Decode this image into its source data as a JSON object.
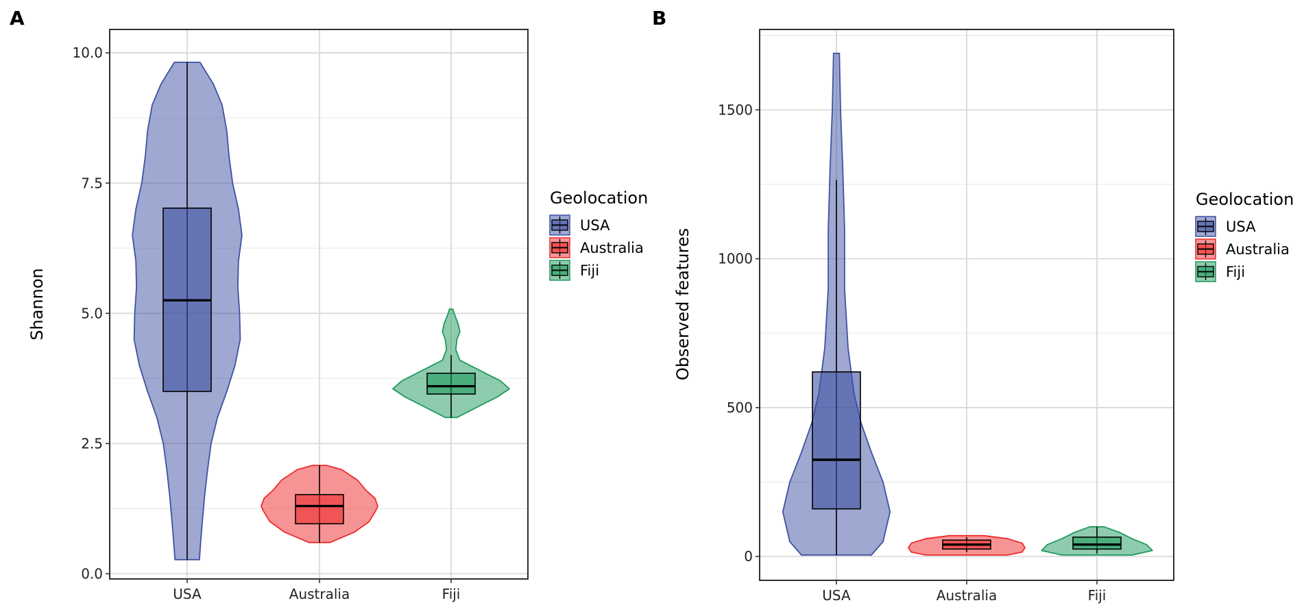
{
  "chart_data": [
    {
      "panel_label": "A",
      "type": "violin",
      "title": "",
      "xlabel": "",
      "ylabel": "Shannon",
      "ylim": [
        -0.1,
        10.45
      ],
      "yticks": [
        0.0,
        2.5,
        5.0,
        7.5,
        10.0
      ],
      "ytick_labels": [
        "0.0",
        "2.5",
        "5.0",
        "7.5",
        "10.0"
      ],
      "categories": [
        "USA",
        "Australia",
        "Fiji"
      ],
      "grid": true,
      "legend": {
        "title": "Geolocation",
        "position": "right",
        "entries": [
          "USA",
          "Australia",
          "Fiji"
        ]
      },
      "groups": [
        {
          "name": "USA",
          "color": "#3F51A2",
          "box": {
            "whisker_low": 0.27,
            "q1": 3.5,
            "median": 5.25,
            "q3": 7.02,
            "whisker_high": 9.82
          },
          "density": [
            [
              0.27,
              0.21
            ],
            [
              0.6,
              0.23
            ],
            [
              1.0,
              0.26
            ],
            [
              1.5,
              0.3
            ],
            [
              2.0,
              0.35
            ],
            [
              2.5,
              0.41
            ],
            [
              3.0,
              0.52
            ],
            [
              3.5,
              0.68
            ],
            [
              4.0,
              0.82
            ],
            [
              4.5,
              0.91
            ],
            [
              5.0,
              0.9
            ],
            [
              5.5,
              0.87
            ],
            [
              6.0,
              0.88
            ],
            [
              6.5,
              0.94
            ],
            [
              7.0,
              0.88
            ],
            [
              7.5,
              0.78
            ],
            [
              8.0,
              0.72
            ],
            [
              8.5,
              0.68
            ],
            [
              9.0,
              0.6
            ],
            [
              9.4,
              0.45
            ],
            [
              9.82,
              0.22
            ]
          ]
        },
        {
          "name": "Australia",
          "color": "#EE2A2B",
          "box": {
            "whisker_low": 0.6,
            "q1": 0.96,
            "median": 1.3,
            "q3": 1.52,
            "whisker_high": 2.08
          },
          "density": [
            [
              0.6,
              0.18
            ],
            [
              0.8,
              0.6
            ],
            [
              1.0,
              0.85
            ],
            [
              1.2,
              0.96
            ],
            [
              1.3,
              1.0
            ],
            [
              1.45,
              0.95
            ],
            [
              1.6,
              0.8
            ],
            [
              1.8,
              0.65
            ],
            [
              2.0,
              0.38
            ],
            [
              2.08,
              0.12
            ]
          ]
        },
        {
          "name": "Fiji",
          "color": "#1E9A5C",
          "box": {
            "whisker_low": 3.0,
            "q1": 3.45,
            "median": 3.6,
            "q3": 3.85,
            "whisker_high": 4.2
          },
          "density": [
            [
              3.0,
              0.1
            ],
            [
              3.2,
              0.45
            ],
            [
              3.4,
              0.8
            ],
            [
              3.55,
              1.0
            ],
            [
              3.7,
              0.85
            ],
            [
              3.9,
              0.5
            ],
            [
              4.1,
              0.15
            ],
            [
              4.3,
              0.08
            ],
            [
              4.5,
              0.1
            ],
            [
              4.65,
              0.15
            ],
            [
              4.8,
              0.12
            ],
            [
              5.0,
              0.05
            ],
            [
              5.08,
              0.03
            ]
          ]
        }
      ]
    },
    {
      "panel_label": "B",
      "type": "violin",
      "title": "",
      "xlabel": "",
      "ylabel": "Observed features",
      "ylim": [
        -80,
        1770
      ],
      "yticks": [
        0,
        500,
        1000,
        1500
      ],
      "ytick_labels": [
        "0",
        "500",
        "1000",
        "1500"
      ],
      "categories": [
        "USA",
        "Australia",
        "Fiji"
      ],
      "grid": true,
      "legend": {
        "title": "Geolocation",
        "position": "right",
        "entries": [
          "USA",
          "Australia",
          "Fiji"
        ]
      },
      "groups": [
        {
          "name": "USA",
          "color": "#3F51A2",
          "box": {
            "whisker_low": 5,
            "q1": 160,
            "median": 325,
            "q3": 620,
            "whisker_high": 1265
          },
          "density": [
            [
              5,
              0.6
            ],
            [
              50,
              0.8
            ],
            [
              150,
              0.92
            ],
            [
              250,
              0.8
            ],
            [
              350,
              0.6
            ],
            [
              450,
              0.42
            ],
            [
              550,
              0.3
            ],
            [
              700,
              0.2
            ],
            [
              900,
              0.14
            ],
            [
              1100,
              0.14
            ],
            [
              1300,
              0.11
            ],
            [
              1500,
              0.07
            ],
            [
              1690,
              0.05
            ]
          ]
        },
        {
          "name": "Australia",
          "color": "#EE2A2B",
          "box": {
            "whisker_low": 15,
            "q1": 25,
            "median": 40,
            "q3": 55,
            "whisker_high": 65
          },
          "density": [
            [
              5,
              0.7
            ],
            [
              15,
              0.95
            ],
            [
              30,
              1.0
            ],
            [
              45,
              0.95
            ],
            [
              60,
              0.7
            ],
            [
              70,
              0.3
            ]
          ]
        },
        {
          "name": "Fiji",
          "color": "#1E9A5C",
          "box": {
            "whisker_low": 10,
            "q1": 25,
            "median": 40,
            "q3": 65,
            "whisker_high": 100
          },
          "density": [
            [
              5,
              0.6
            ],
            [
              20,
              0.95
            ],
            [
              40,
              0.85
            ],
            [
              60,
              0.6
            ],
            [
              80,
              0.4
            ],
            [
              100,
              0.12
            ]
          ]
        }
      ]
    }
  ]
}
